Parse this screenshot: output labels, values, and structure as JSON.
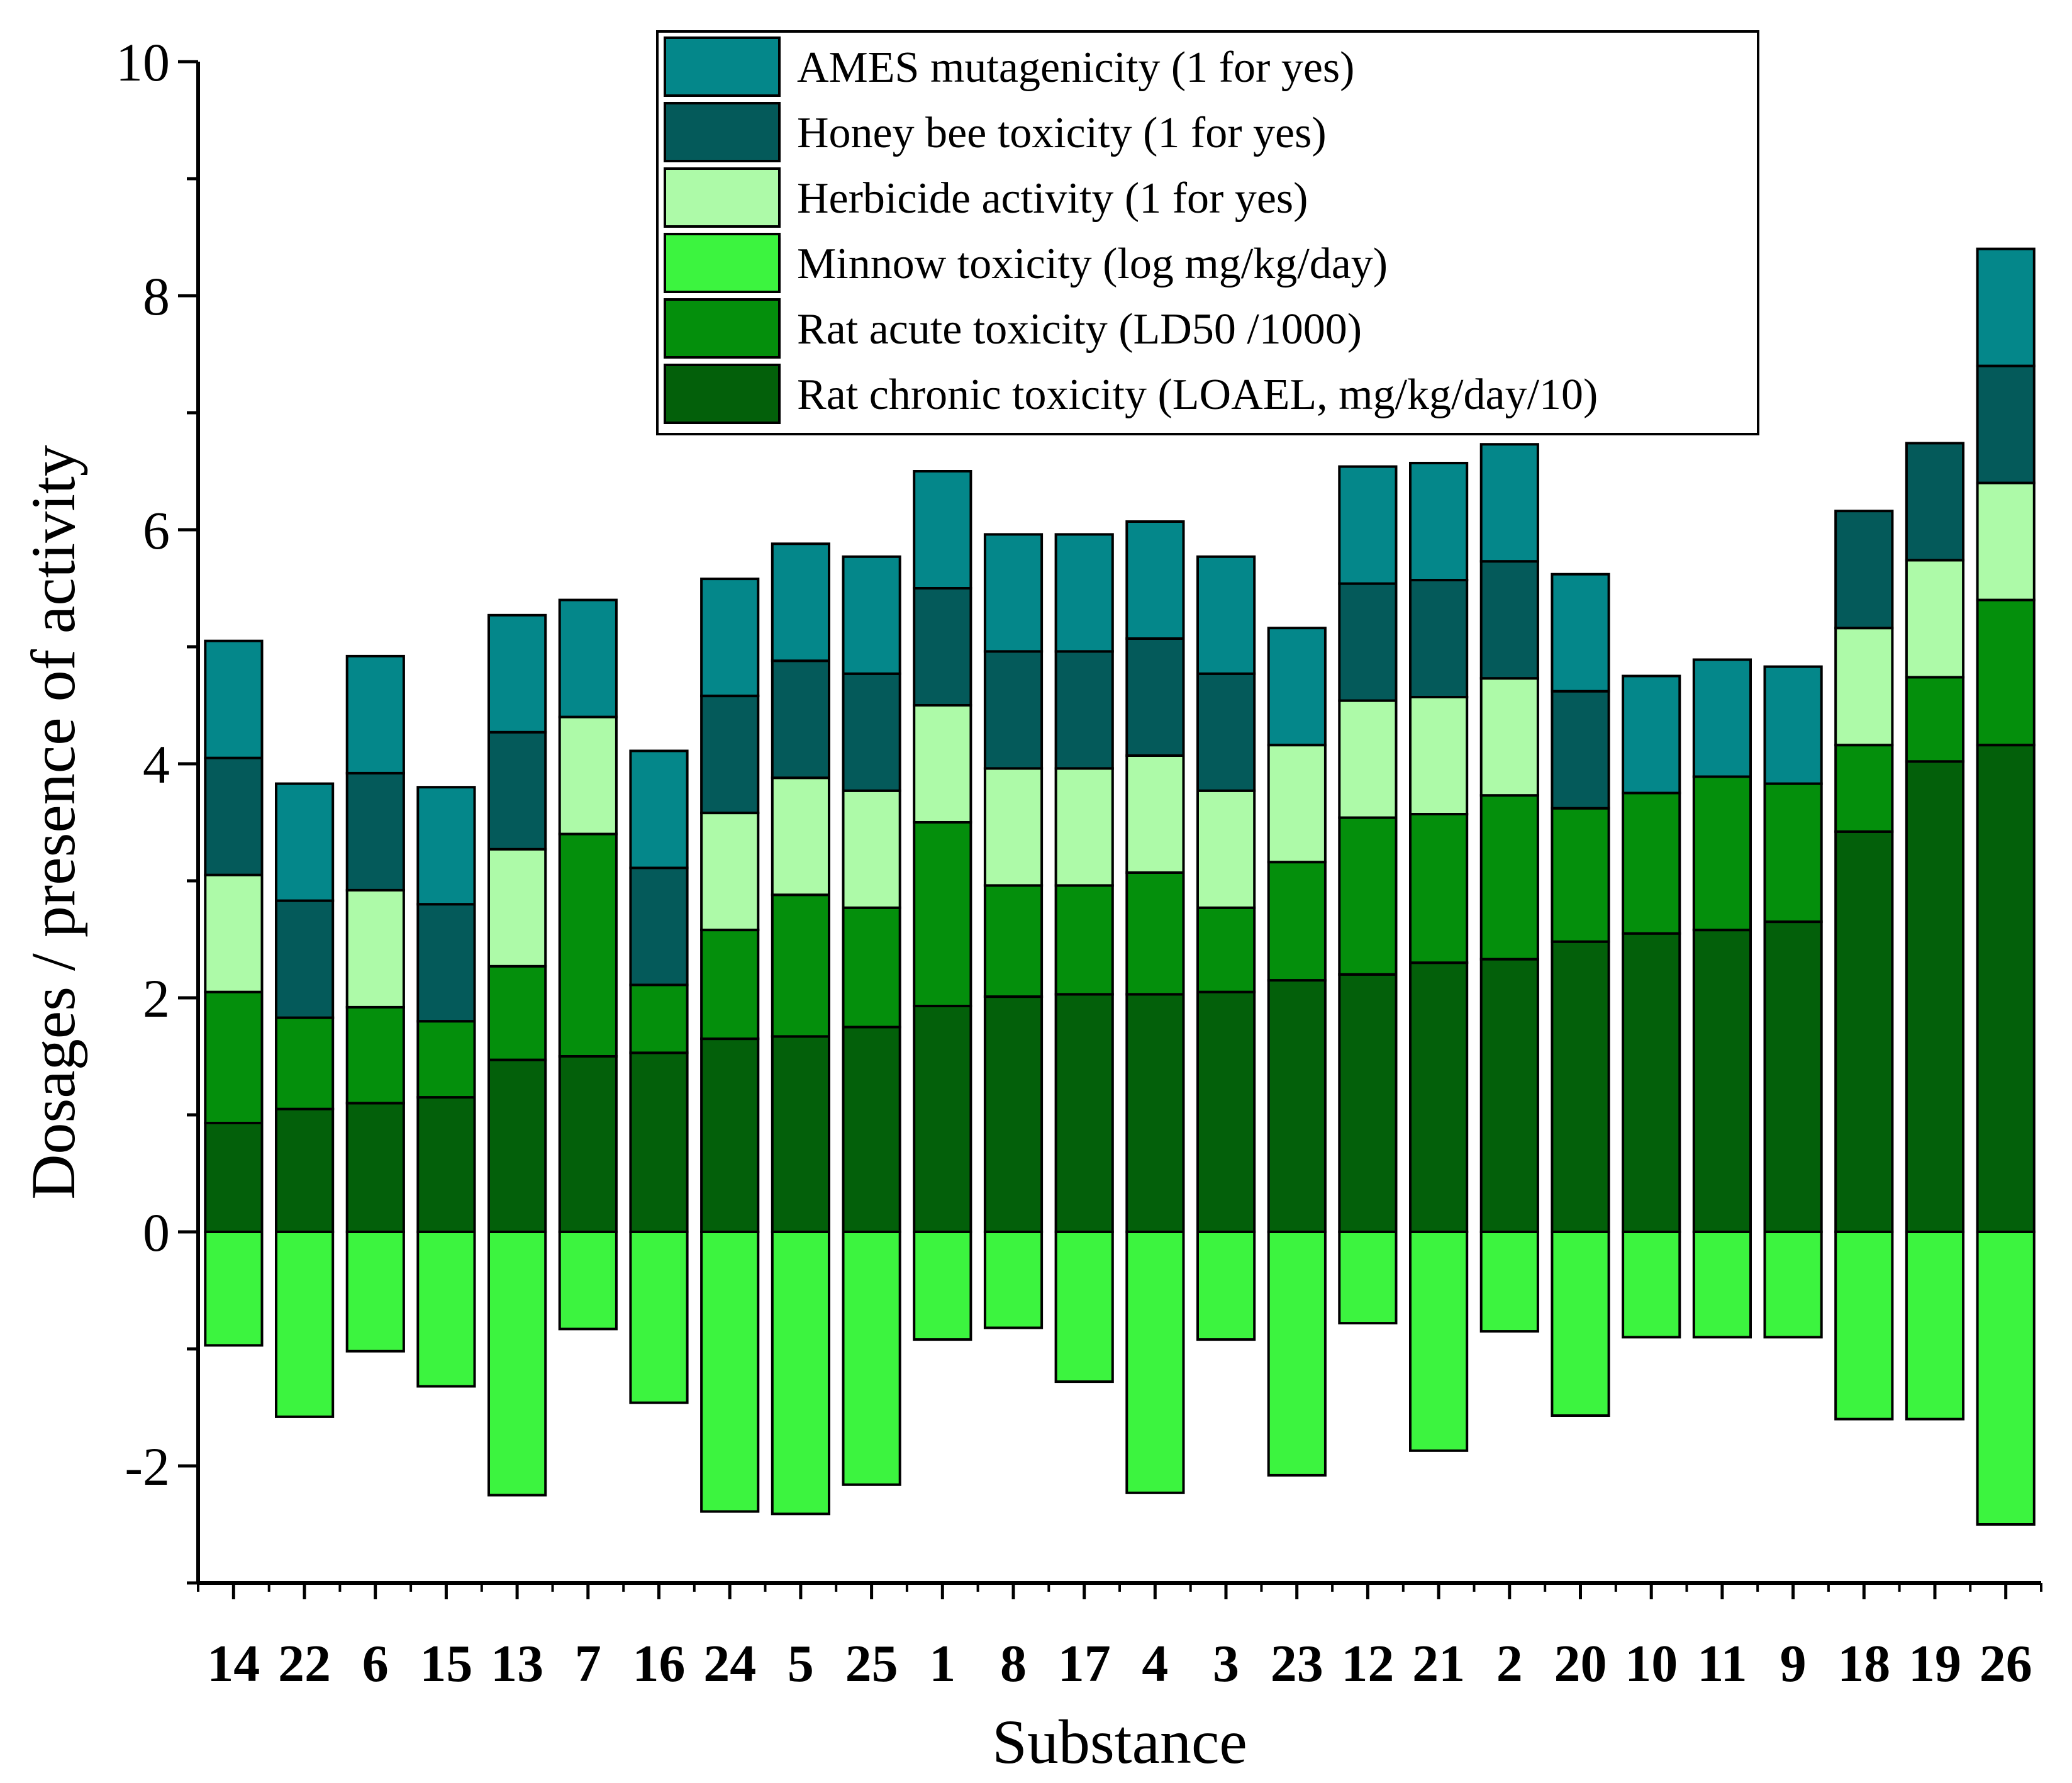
{
  "chart_data": {
    "type": "bar",
    "stacked": true,
    "title": "",
    "xlabel": "Substance",
    "ylabel": "Dosages / presence of activity",
    "ylim": [
      -3,
      10
    ],
    "yticks": [
      "-2",
      "0",
      "2",
      "4",
      "6",
      "8",
      "10"
    ],
    "legend_position": "top-center",
    "categories": [
      "14",
      "22",
      "6",
      "15",
      "13",
      "7",
      "16",
      "24",
      "5",
      "25",
      "1",
      "8",
      "17",
      "4",
      "3",
      "23",
      "12",
      "21",
      "2",
      "20",
      "10",
      "11",
      "9",
      "18",
      "19",
      "26"
    ],
    "series": [
      {
        "name": "Rat chronic toxicity (LOAEL, mg/kg/day/10)",
        "color": "#03600a",
        "values": [
          0.93,
          1.05,
          1.1,
          1.15,
          1.47,
          1.5,
          1.53,
          1.65,
          1.67,
          1.75,
          1.93,
          2.01,
          2.03,
          2.03,
          2.05,
          2.15,
          2.2,
          2.3,
          2.33,
          2.48,
          2.55,
          2.58,
          2.65,
          3.42,
          4.02,
          4.16
        ]
      },
      {
        "name": "Rat acute toxicity (LD50 /1000)",
        "color": "#048f0c",
        "values": [
          1.12,
          0.78,
          0.82,
          0.65,
          0.8,
          1.9,
          0.58,
          0.93,
          1.21,
          1.02,
          1.57,
          0.95,
          0.93,
          1.04,
          0.72,
          1.01,
          1.34,
          1.27,
          1.4,
          1.14,
          1.2,
          1.31,
          1.18,
          0.74,
          0.72,
          1.24
        ]
      },
      {
        "name": "Minnow toxicity (log mg/kg/day)",
        "color": "#3cf43f",
        "values": [
          -0.97,
          -1.58,
          -1.02,
          -1.32,
          -2.25,
          -0.83,
          -1.46,
          -2.39,
          -2.41,
          -2.16,
          -0.92,
          -0.82,
          -1.28,
          -2.23,
          -0.92,
          -2.08,
          -0.78,
          -1.87,
          -0.85,
          -1.57,
          -0.9,
          -0.9,
          -0.9,
          -1.6,
          -1.6,
          -2.5
        ]
      },
      {
        "name": "Herbicide activity (1 for yes)",
        "color": "#adfaa8",
        "values": [
          1,
          0,
          1,
          0,
          1,
          1,
          0,
          1,
          1,
          1,
          1,
          1,
          1,
          1,
          1,
          1,
          1,
          1,
          1,
          0,
          0,
          0,
          0,
          1,
          1,
          1
        ]
      },
      {
        "name": "Honey bee toxicity (1 for yes)",
        "color": "#045a5a",
        "values": [
          1,
          1,
          1,
          1,
          1,
          0,
          1,
          1,
          1,
          1,
          1,
          1,
          1,
          1,
          1,
          0,
          1,
          1,
          1,
          1,
          0,
          0,
          0,
          1,
          1,
          1
        ]
      },
      {
        "name": "AMES mutagenicity (1 for yes)",
        "color": "#04878a",
        "values": [
          1,
          1,
          1,
          1,
          1,
          1,
          1,
          1,
          1,
          1,
          1,
          1,
          1,
          1,
          1,
          1,
          1,
          1,
          1,
          1,
          1,
          1,
          1,
          0,
          0,
          1
        ]
      }
    ],
    "legend_order": [
      "AMES mutagenicity (1 for yes)",
      "Honey bee toxicity (1 for yes)",
      "Herbicide activity (1 for yes)",
      "Minnow toxicity (log mg/kg/day)",
      "Rat acute toxicity (LD50 /1000)",
      "Rat chronic toxicity (LOAEL, mg/kg/day/10)"
    ]
  }
}
